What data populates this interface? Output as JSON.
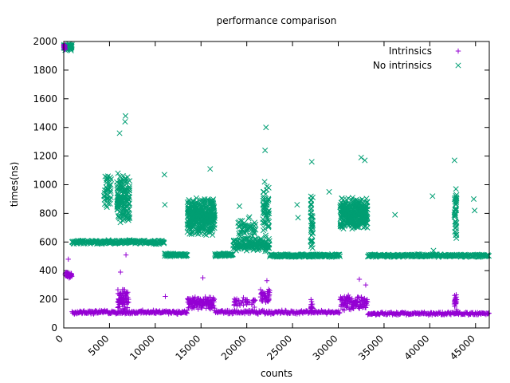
{
  "chart_data": {
    "type": "scatter",
    "title": "performance comparison",
    "xlabel": "counts",
    "ylabel": "times(ns)",
    "xlim": [
      0,
      46500
    ],
    "ylim": [
      0,
      2000
    ],
    "xticks": [
      "0",
      "5000",
      "10000",
      "15000",
      "20000",
      "25000",
      "30000",
      "35000",
      "40000",
      "45000"
    ],
    "yticks": [
      "0",
      "200",
      "400",
      "600",
      "800",
      "1000",
      "1200",
      "1400",
      "1600",
      "1800",
      "2000"
    ],
    "legend_position": "top-right",
    "series": [
      {
        "name": "Intrinsics",
        "marker": "plus",
        "color": "#9400d3",
        "segments": [
          {
            "x0": 0,
            "x1": 150,
            "y": 1960,
            "jitter": 25,
            "n": 20
          },
          {
            "x0": 150,
            "x1": 900,
            "y": 370,
            "jitter": 25,
            "n": 40
          },
          {
            "x0": 900,
            "x1": 13500,
            "y": 110,
            "jitter": 15,
            "n": 220
          },
          {
            "x0": 13500,
            "x1": 16500,
            "y": 170,
            "jitter": 55,
            "n": 120
          },
          {
            "x0": 16500,
            "x1": 30200,
            "y": 110,
            "jitter": 15,
            "n": 200
          },
          {
            "x0": 30200,
            "x1": 33200,
            "y": 175,
            "jitter": 55,
            "n": 110
          },
          {
            "x0": 33200,
            "x1": 46500,
            "y": 100,
            "jitter": 12,
            "n": 200
          }
        ],
        "clusters": [
          {
            "x": 6500,
            "y": 200,
            "spread_x": 600,
            "jitter": 80,
            "n": 80
          },
          {
            "x": 19800,
            "y": 180,
            "spread_x": 1200,
            "jitter": 40,
            "n": 40
          },
          {
            "x": 22000,
            "y": 220,
            "spread_x": 500,
            "jitter": 60,
            "n": 40
          },
          {
            "x": 27100,
            "y": 150,
            "spread_x": 100,
            "jitter": 60,
            "n": 20
          },
          {
            "x": 42800,
            "y": 180,
            "spread_x": 150,
            "jitter": 80,
            "n": 25
          }
        ],
        "points": [
          [
            500,
            480
          ],
          [
            6800,
            510
          ],
          [
            6200,
            390
          ],
          [
            32300,
            340
          ],
          [
            33000,
            300
          ],
          [
            22200,
            330
          ],
          [
            15200,
            350
          ],
          [
            11100,
            220
          ]
        ]
      },
      {
        "name": "No intrinsics",
        "marker": "cross",
        "color": "#009e73",
        "segments": [
          {
            "x0": 0,
            "x1": 900,
            "y": 1960,
            "jitter": 30,
            "n": 60
          },
          {
            "x0": 900,
            "x1": 11000,
            "y": 600,
            "jitter": 15,
            "n": 220
          },
          {
            "x0": 11000,
            "x1": 13500,
            "y": 510,
            "jitter": 12,
            "n": 70
          },
          {
            "x0": 13500,
            "x1": 16500,
            "y": 780,
            "jitter": 140,
            "n": 400
          },
          {
            "x0": 16500,
            "x1": 18500,
            "y": 510,
            "jitter": 12,
            "n": 60
          },
          {
            "x0": 18500,
            "x1": 22500,
            "y": 580,
            "jitter": 50,
            "n": 150
          },
          {
            "x0": 22500,
            "x1": 30200,
            "y": 505,
            "jitter": 12,
            "n": 180
          },
          {
            "x0": 30200,
            "x1": 33200,
            "y": 800,
            "jitter": 120,
            "n": 350
          },
          {
            "x0": 33200,
            "x1": 46500,
            "y": 505,
            "jitter": 12,
            "n": 240
          }
        ],
        "clusters": [
          {
            "x": 6500,
            "y": 900,
            "spread_x": 700,
            "jitter": 200,
            "n": 160
          },
          {
            "x": 4800,
            "y": 950,
            "spread_x": 400,
            "jitter": 120,
            "n": 40
          },
          {
            "x": 22100,
            "y": 800,
            "spread_x": 350,
            "jitter": 230,
            "n": 60
          },
          {
            "x": 27100,
            "y": 750,
            "spread_x": 120,
            "jitter": 220,
            "n": 40
          },
          {
            "x": 42800,
            "y": 800,
            "spread_x": 130,
            "jitter": 200,
            "n": 40
          },
          {
            "x": 20000,
            "y": 700,
            "spread_x": 1000,
            "jitter": 80,
            "n": 50
          }
        ],
        "points": [
          [
            6100,
            1360
          ],
          [
            6750,
            1480
          ],
          [
            6700,
            1440
          ],
          [
            22100,
            1400
          ],
          [
            22000,
            1240
          ],
          [
            27100,
            1160
          ],
          [
            32500,
            1190
          ],
          [
            32900,
            1170
          ],
          [
            42700,
            1170
          ],
          [
            11000,
            1070
          ],
          [
            11050,
            860
          ],
          [
            25500,
            860
          ],
          [
            25600,
            770
          ],
          [
            36200,
            790
          ],
          [
            40300,
            920
          ],
          [
            40400,
            540
          ],
          [
            44800,
            900
          ],
          [
            44900,
            820
          ],
          [
            29000,
            950
          ],
          [
            19200,
            850
          ],
          [
            16000,
            1110
          ]
        ]
      }
    ]
  }
}
